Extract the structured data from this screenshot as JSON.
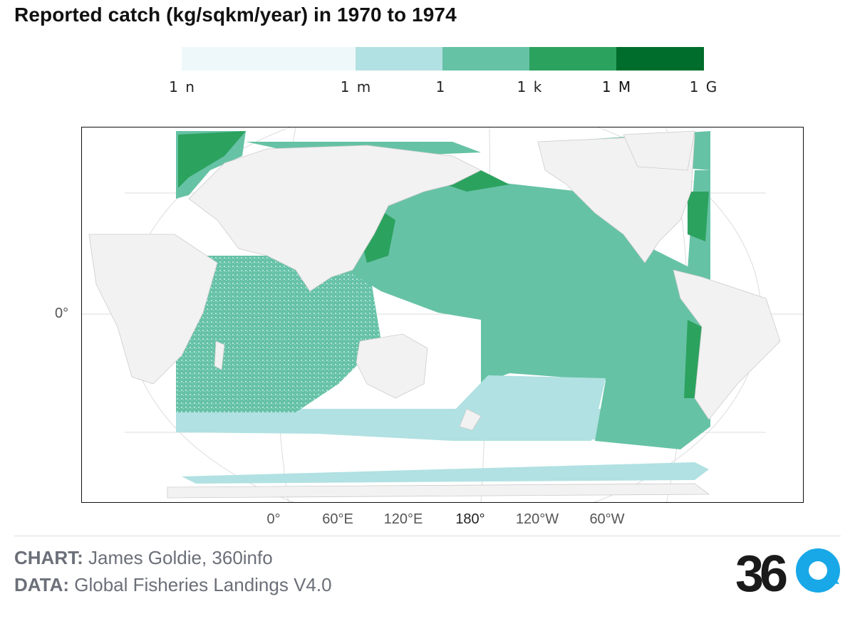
{
  "title": "Reported catch (kg/sqkm/year) in 1970 to 1974",
  "legend": {
    "bins": [
      {
        "from": "1 n",
        "to": "1 m",
        "color": "#eef8fa"
      },
      {
        "from": "1 m",
        "to": "1",
        "color": "#b1e1e2"
      },
      {
        "from": "1",
        "to": "1 k",
        "color": "#66c2a5"
      },
      {
        "from": "1 k",
        "to": "1 M",
        "color": "#2ca25f"
      },
      {
        "from": "1 M",
        "to": "1 G",
        "color": "#006d2c"
      }
    ],
    "labels": [
      "1 n",
      "1 m",
      "1",
      "1 k",
      "1 M",
      "1 G"
    ]
  },
  "map": {
    "y_axis_label": "0°",
    "x_axis_labels": [
      "0°",
      "60°E",
      "120°E",
      "180°",
      "120°W",
      "60°W"
    ],
    "land_color": "#f2f2f2",
    "graticule_color": "#dddddd"
  },
  "credits": {
    "chart_prefix": "CHART:",
    "chart_text": " James Goldie, 360info",
    "data_prefix": "DATA:",
    "data_text": " Global Fisheries Landings V4.0"
  },
  "logo": {
    "text_dark": "36",
    "text_light": "0",
    "dark_color": "#1a1a1a",
    "accent_color": "#18a8e8"
  }
}
